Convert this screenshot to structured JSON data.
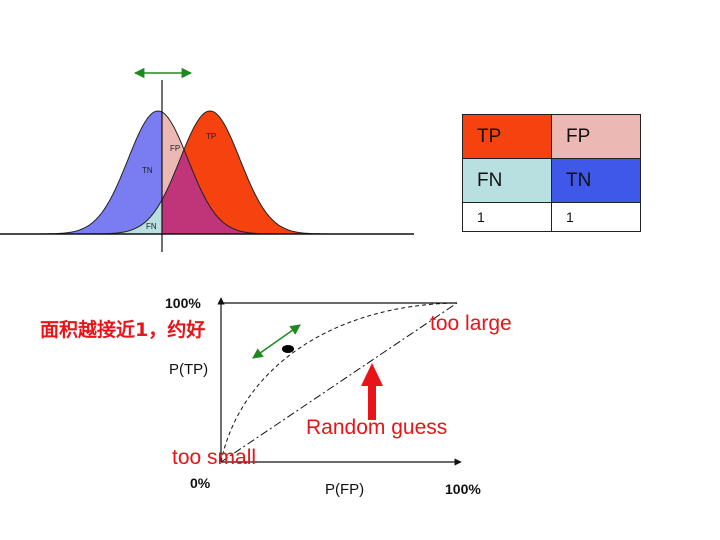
{
  "colors": {
    "tn_blue": "#7a7cf2",
    "tp_red": "#f5420f",
    "fp_pink": "#ecb8b4",
    "fn_cyan": "#b8e0e0",
    "overlap_magenta": "#c0357a",
    "tn_cell": "#3f58ea",
    "arrow_green": "#1e8a1e",
    "annotation_red": "#e8141a"
  },
  "icons": {
    "threshold_arrow": "double-headed-arrow",
    "operating_point_arrow": "double-headed-arrow",
    "random_guess_arrow": "up-arrow"
  },
  "distribution_labels": {
    "tn": "TN",
    "fp": "FP",
    "tp": "TP",
    "fn": "FN"
  },
  "confusion_table": {
    "row1": [
      "TP",
      "FP"
    ],
    "row2": [
      "FN",
      "TN"
    ],
    "row3": [
      "1",
      "1"
    ]
  },
  "roc": {
    "y_top_label": "100%",
    "y_axis_label": "P(TP)",
    "origin_label": "0%",
    "x_axis_label": "P(FP)",
    "x_right_label": "100%",
    "annotation_area": "面积越接近1，约好",
    "annotation_too_large": "too large",
    "annotation_random": "Random guess",
    "annotation_too_small": "too small"
  }
}
